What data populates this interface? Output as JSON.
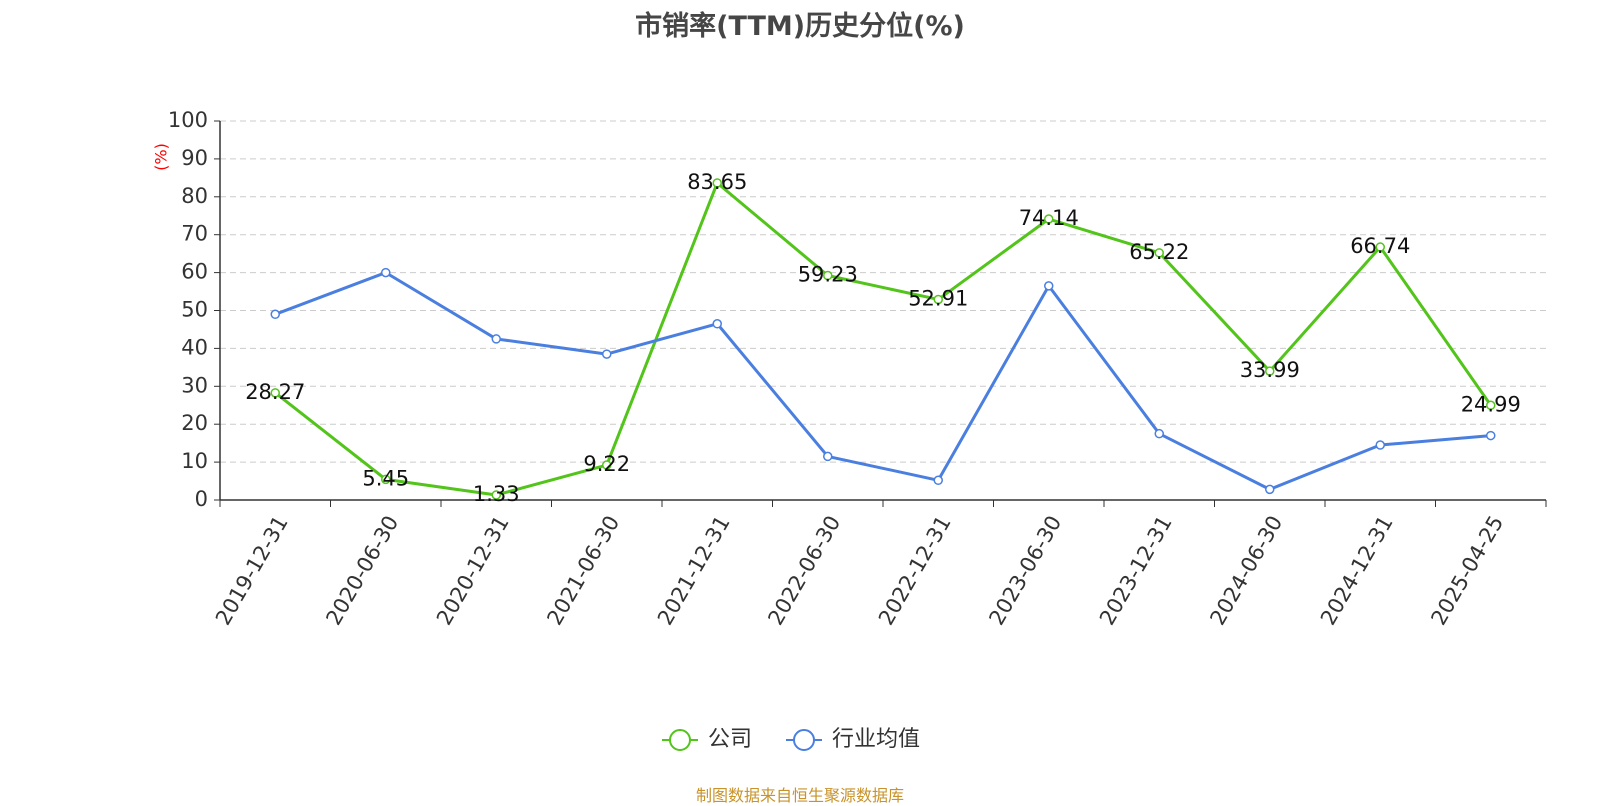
{
  "chart_data": {
    "type": "line",
    "title": "市销率(TTM)历史分位(%)",
    "ylabel": "(%)",
    "ylim": [
      0,
      100
    ],
    "yticks": [
      0,
      10,
      20,
      30,
      40,
      50,
      60,
      70,
      80,
      90,
      100
    ],
    "categories": [
      "2019-12-31",
      "2020-06-30",
      "2020-12-31",
      "2021-06-30",
      "2021-12-31",
      "2022-06-30",
      "2022-12-31",
      "2023-06-30",
      "2023-12-31",
      "2024-06-30",
      "2024-12-31",
      "2025-04-25"
    ],
    "grid": true,
    "legend_position": "bottom",
    "series": [
      {
        "name": "公司",
        "color": "#52c41a",
        "show_labels": true,
        "values": [
          28.27,
          5.45,
          1.33,
          9.22,
          83.65,
          59.23,
          52.91,
          74.14,
          65.22,
          33.99,
          66.74,
          24.99
        ]
      },
      {
        "name": "行业均值",
        "color": "#4a7fe0",
        "show_labels": false,
        "values": [
          49,
          60,
          42.5,
          38.5,
          46.5,
          11.5,
          5.2,
          56.5,
          17.5,
          2.8,
          14.5,
          17
        ]
      }
    ]
  },
  "source": "制图数据来自恒生聚源数据库"
}
